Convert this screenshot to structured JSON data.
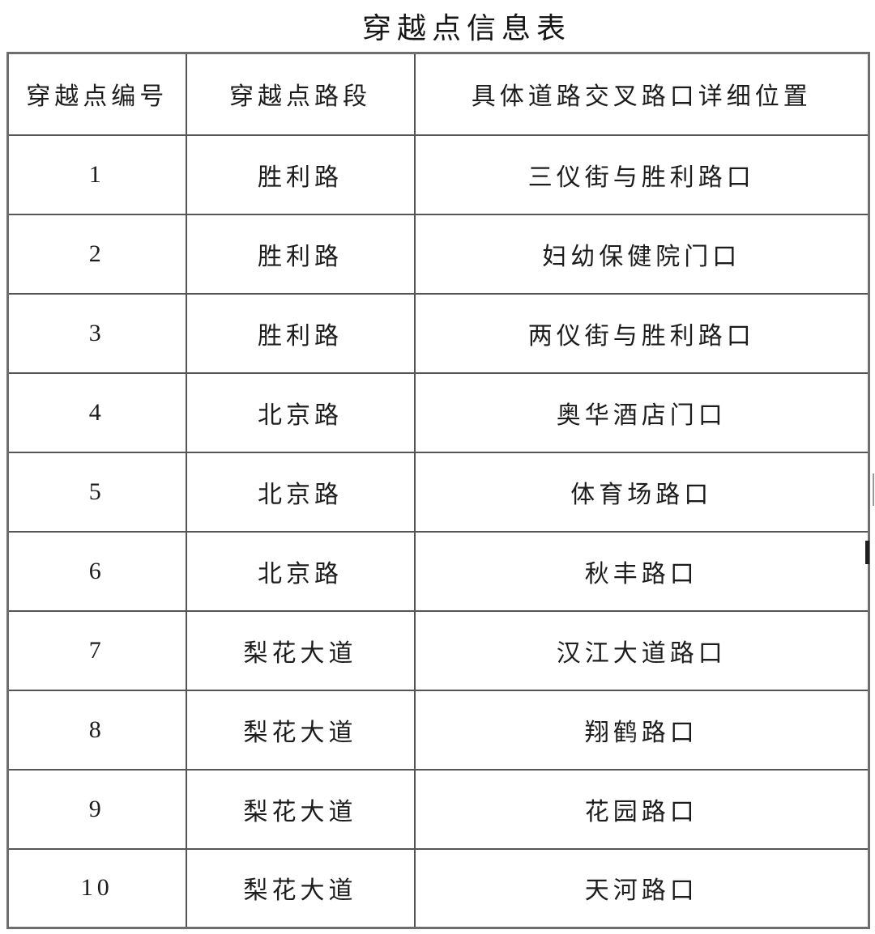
{
  "page": {
    "title": "穿越点信息表"
  },
  "colors": {
    "background": "#ffffff",
    "text": "#1c1c1c",
    "border_inner": "#555555",
    "border_outer": "#6e6e6e"
  },
  "table": {
    "headers": [
      "穿越点编号",
      "穿越点路段",
      "具体道路交叉路口详细位置"
    ],
    "rows": [
      {
        "id": "1",
        "road": "胜利路",
        "location": "三仪街与胜利路口"
      },
      {
        "id": "2",
        "road": "胜利路",
        "location": "妇幼保健院门口"
      },
      {
        "id": "3",
        "road": "胜利路",
        "location": "两仪街与胜利路口"
      },
      {
        "id": "4",
        "road": "北京路",
        "location": "奥华酒店门口"
      },
      {
        "id": "5",
        "road": "北京路",
        "location": "体育场路口"
      },
      {
        "id": "6",
        "road": "北京路",
        "location": "秋丰路口"
      },
      {
        "id": "7",
        "road": "梨花大道",
        "location": "汉江大道路口"
      },
      {
        "id": "8",
        "road": "梨花大道",
        "location": "翔鹤路口"
      },
      {
        "id": "9",
        "road": "梨花大道",
        "location": "花园路口"
      },
      {
        "id": "10",
        "road": "梨花大道",
        "location": "天河路口"
      }
    ]
  }
}
